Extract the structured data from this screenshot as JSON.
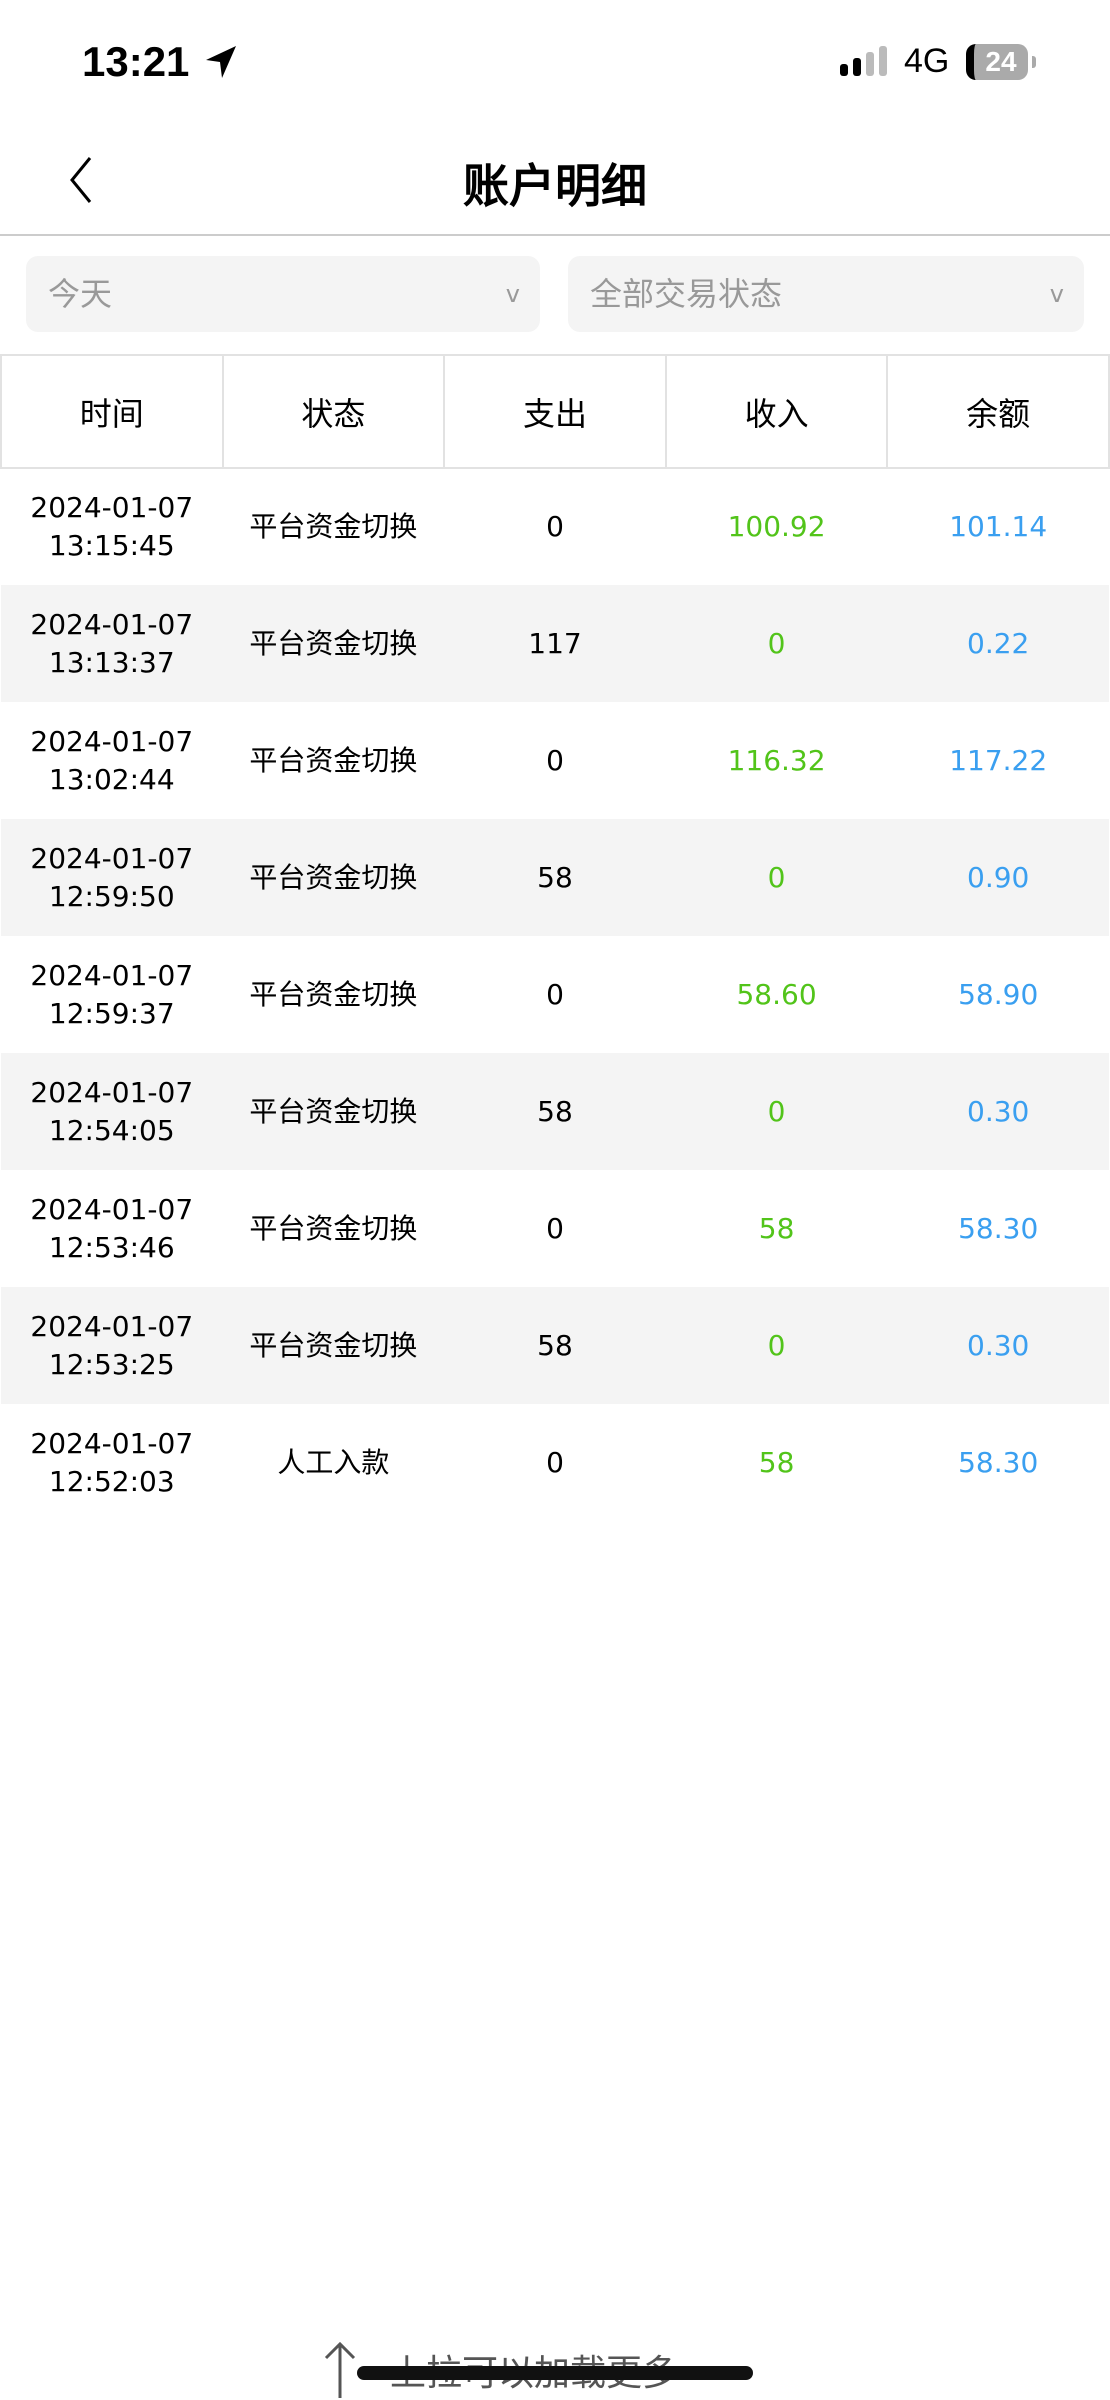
{
  "status_bar": {
    "time": "13:21",
    "network": "4G",
    "battery": "24"
  },
  "header": {
    "title": "账户明细"
  },
  "filters": {
    "date": "今天",
    "status": "全部交易状态"
  },
  "table": {
    "columns": [
      "时间",
      "状态",
      "支出",
      "收入",
      "余额"
    ],
    "rows": [
      {
        "date": "2024-01-07",
        "time": "13:15:45",
        "status": "平台资金切换",
        "out": "0",
        "in": "100.92",
        "balance": "101.14"
      },
      {
        "date": "2024-01-07",
        "time": "13:13:37",
        "status": "平台资金切换",
        "out": "117",
        "in": "0",
        "balance": "0.22"
      },
      {
        "date": "2024-01-07",
        "time": "13:02:44",
        "status": "平台资金切换",
        "out": "0",
        "in": "116.32",
        "balance": "117.22"
      },
      {
        "date": "2024-01-07",
        "time": "12:59:50",
        "status": "平台资金切换",
        "out": "58",
        "in": "0",
        "balance": "0.90"
      },
      {
        "date": "2024-01-07",
        "time": "12:59:37",
        "status": "平台资金切换",
        "out": "0",
        "in": "58.60",
        "balance": "58.90"
      },
      {
        "date": "2024-01-07",
        "time": "12:54:05",
        "status": "平台资金切换",
        "out": "58",
        "in": "0",
        "balance": "0.30"
      },
      {
        "date": "2024-01-07",
        "time": "12:53:46",
        "status": "平台资金切换",
        "out": "0",
        "in": "58",
        "balance": "58.30"
      },
      {
        "date": "2024-01-07",
        "time": "12:53:25",
        "status": "平台资金切换",
        "out": "58",
        "in": "0",
        "balance": "0.30"
      },
      {
        "date": "2024-01-07",
        "time": "12:52:03",
        "status": "人工入款",
        "out": "0",
        "in": "58",
        "balance": "58.30"
      }
    ]
  },
  "footer": {
    "load_more": "上拉可以加载更多"
  },
  "colors": {
    "income": "#52c41a",
    "balance": "#3a9ff0"
  }
}
